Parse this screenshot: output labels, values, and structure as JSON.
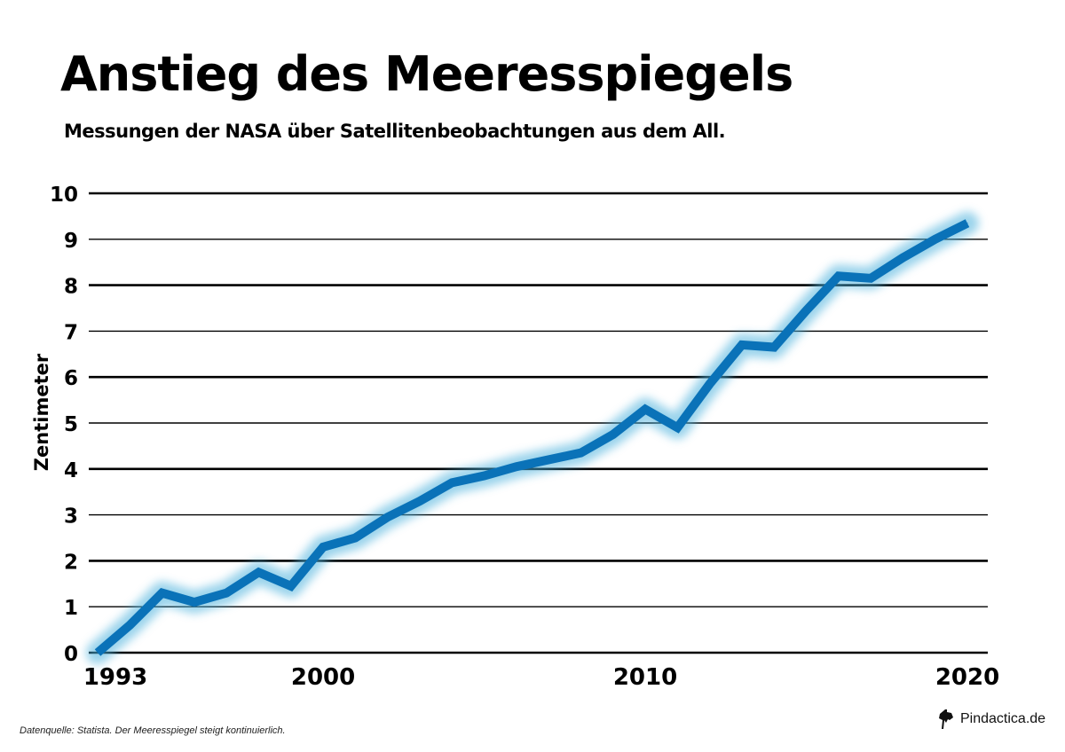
{
  "chart_data": {
    "type": "line",
    "title": "Anstieg des Meeresspiegels",
    "subtitle": "Messungen der NASA über Satellitenbeobachtungen aus dem All.",
    "xlabel": "",
    "ylabel": "Zentimeter",
    "x": [
      1993,
      1994,
      1995,
      1996,
      1997,
      1998,
      1999,
      2000,
      2001,
      2002,
      2003,
      2004,
      2005,
      2006,
      2007,
      2008,
      2009,
      2010,
      2011,
      2012,
      2013,
      2014,
      2015,
      2016,
      2017,
      2018,
      2019,
      2020
    ],
    "series": [
      {
        "name": "Meeresspiegel",
        "values": [
          0.0,
          0.6,
          1.3,
          1.1,
          1.3,
          1.75,
          1.45,
          2.3,
          2.5,
          2.95,
          3.3,
          3.7,
          3.85,
          4.05,
          4.2,
          4.35,
          4.75,
          5.3,
          4.9,
          5.85,
          6.7,
          6.65,
          7.45,
          8.2,
          8.15,
          8.6,
          9.0,
          9.35
        ]
      }
    ],
    "xticks": [
      "1993",
      "2000",
      "2010",
      "2020"
    ],
    "yticks": [
      "0",
      "1",
      "2",
      "3",
      "4",
      "5",
      "6",
      "7",
      "8",
      "9",
      "10"
    ],
    "xlim": [
      1993,
      2020
    ],
    "ylim": [
      0,
      10
    ],
    "grid": true,
    "line_color": "#0a72b8",
    "glow_color": "#4ab0dc"
  },
  "footer": {
    "source": "Datenquelle: Statista. Der Meeresspiegel steigt kontinuierlich.",
    "brand": "Pindactica.de"
  }
}
